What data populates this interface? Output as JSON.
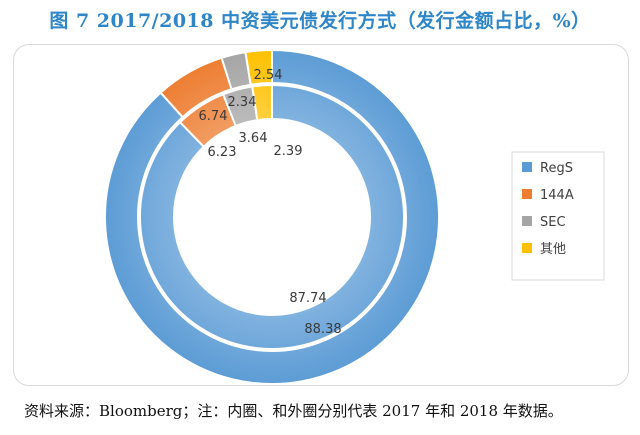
{
  "title": "图 7 2017/2018 中资美元债发行方式（发行金额占比，%）",
  "source": "资料来源：Bloomberg；注：内圈、和外圈分别代表 2017 年和 2018 年数据。",
  "colors": {
    "RegS": "#5b9bd5",
    "144A": "#ed7d31",
    "SEC": "#a5a5a5",
    "其他": "#ffc000"
  },
  "chart_data": {
    "type": "donut",
    "categories": [
      "RegS",
      "144A",
      "SEC",
      "其他"
    ],
    "series": [
      {
        "values": [
          87.74,
          6.23,
          3.64,
          2.39
        ]
      },
      {
        "values": [
          88.38,
          6.74,
          2.34,
          2.54
        ]
      }
    ],
    "data_labels": {
      "inner": [
        "87.74",
        "6.23",
        "3.64",
        "2.39"
      ],
      "outer": [
        "88.38",
        "6.74",
        "2.34",
        "2.54"
      ]
    },
    "legend": [
      "RegS",
      "144A",
      "SEC",
      "其他"
    ],
    "legend_position": "right"
  }
}
